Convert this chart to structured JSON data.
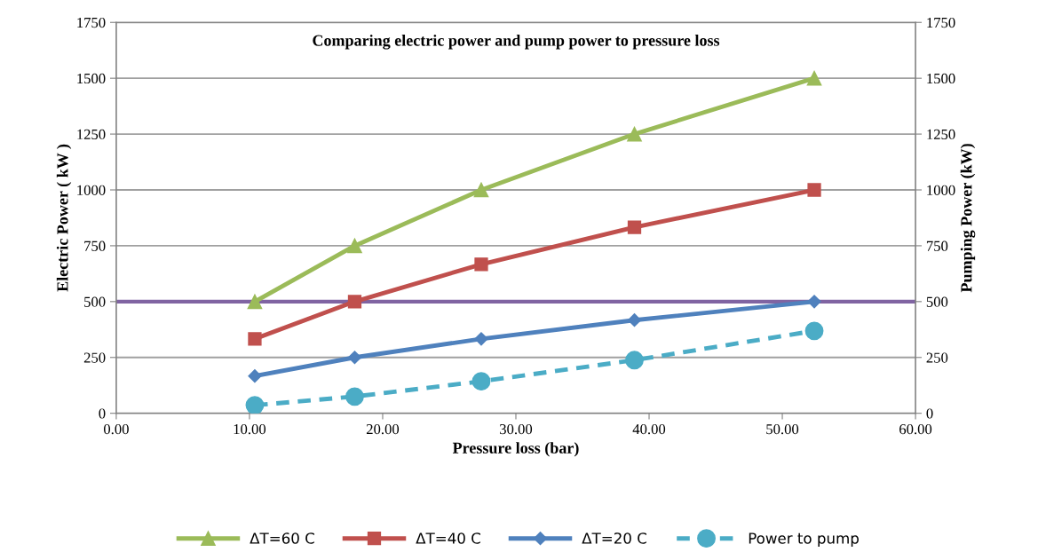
{
  "chart_data": {
    "type": "line",
    "title": "Comparing electric power and pump power to pressure loss",
    "xlabel": "Pressure loss (bar)",
    "ylabel": "Electric Power ( kW )",
    "y2label": "Pumping Power (kW)",
    "x": [
      10.4,
      17.9,
      27.4,
      38.9,
      52.4
    ],
    "series": [
      {
        "name": "ΔT=60 C",
        "color": "#9bbb59",
        "marker": "triangle",
        "line_style": "solid",
        "values": [
          500,
          750,
          1000,
          1250,
          1500
        ]
      },
      {
        "name": "ΔT=40 C",
        "color": "#c0504d",
        "marker": "square",
        "line_style": "solid",
        "values": [
          333,
          500,
          667,
          833,
          1000
        ]
      },
      {
        "name": "ΔT=20 C",
        "color": "#4f81bd",
        "marker": "diamond",
        "line_style": "solid",
        "values": [
          167,
          250,
          333,
          417,
          500
        ]
      },
      {
        "name": "Power to pump",
        "color": "#4bacc6",
        "marker": "circle",
        "line_style": "dashed",
        "axis": "y2",
        "values": [
          36,
          75,
          143,
          238,
          369
        ]
      }
    ],
    "xlim": [
      0,
      60
    ],
    "xticks": [
      {
        "value": 0,
        "label": "0.00"
      },
      {
        "value": 10,
        "label": "10.00"
      },
      {
        "value": 20,
        "label": "20.00"
      },
      {
        "value": 30,
        "label": "30.00"
      },
      {
        "value": 40,
        "label": "40.00"
      },
      {
        "value": 50,
        "label": "50.00"
      },
      {
        "value": 60,
        "label": "60.00"
      }
    ],
    "ylim": [
      0,
      1750
    ],
    "yticks": [
      0,
      250,
      500,
      750,
      1000,
      1250,
      1500,
      1750
    ],
    "y2lim": [
      0,
      1750
    ],
    "y2ticks": [
      0,
      250,
      500,
      750,
      1000,
      1250,
      1500,
      1750
    ],
    "ref_lines": [
      {
        "axis": "y",
        "value": 500,
        "color": "#8064a2"
      }
    ],
    "grid": "y",
    "legend": "bottom"
  }
}
